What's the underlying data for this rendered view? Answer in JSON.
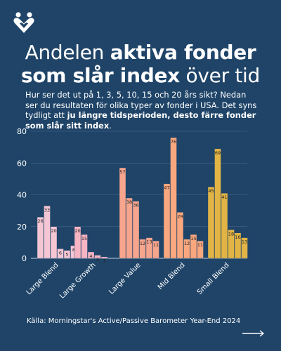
{
  "title": {
    "part1": "Andelen ",
    "bold1": "aktiva fonder",
    "line2_bold": "som slår index",
    "line2_rest": " över tid"
  },
  "intro": {
    "text1": "Hur ser det ut på 1, 3, 5, 10, 15 och 20 års sikt? Nedan ser du resultaten för olika typer av fonder i USA. Det syns tydligt att ",
    "bold": "ju längre tidsperioden, desto färre fonder som slår sitt index",
    "text2": "."
  },
  "source": "Källa: Morningstar's Active/Passive Barometer Year-End 2024",
  "logo_icon": "heart-people-icon",
  "next_icon": "arrow-right-icon",
  "chart_data": {
    "type": "bar",
    "categories": [
      "Large Blend",
      "Large Growth",
      "Large Value",
      "Mid Blend",
      "Small Blend"
    ],
    "periods": [
      "1",
      "3",
      "5",
      "10",
      "15",
      "20"
    ],
    "values": [
      [
        26,
        33,
        20,
        6,
        5,
        8
      ],
      [
        20,
        15,
        4,
        2,
        1,
        0
      ],
      [
        57,
        38,
        36,
        12,
        13,
        11
      ],
      [
        47,
        76,
        29,
        12,
        15,
        11
      ],
      [
        45,
        69,
        41,
        18,
        16,
        13
      ]
    ],
    "bar_labels": [
      [
        "26",
        "33",
        "20",
        "6",
        "5",
        "8"
      ],
      [
        "20",
        "15",
        "4",
        "2",
        "1",
        ""
      ],
      [
        "57",
        "38",
        "36",
        "12",
        "13",
        "11"
      ],
      [
        "47",
        "76",
        "29",
        "12",
        "15",
        "11"
      ],
      [
        "45",
        "69",
        "41",
        "18",
        "16",
        "13"
      ]
    ],
    "colors": [
      "#f5c6d4",
      "#f7b5c4",
      "#f8a58e",
      "#f9a77e",
      "#e2b445"
    ],
    "ylim": [
      0,
      80
    ],
    "yticks": [
      0,
      20,
      40,
      60,
      80
    ],
    "grid": true,
    "xlabel": "",
    "ylabel": ""
  }
}
